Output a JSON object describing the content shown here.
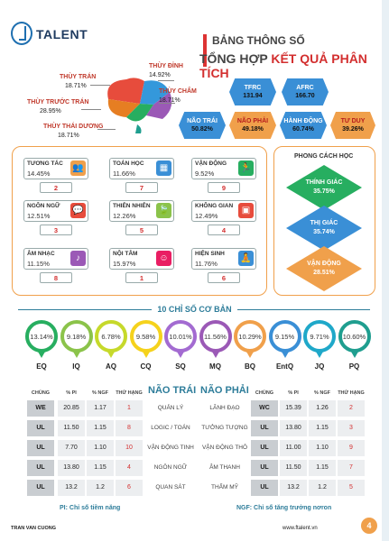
{
  "header": {
    "logo_text": "TALENT",
    "title_line1": "BẢNG THÔNG SỐ",
    "title_line2_a": "TỔNG HỢP ",
    "title_line2_b": "KẾT QUẢ PHÂN TÍCH"
  },
  "brain": [
    {
      "label": "THÙY TRÁN",
      "value": "18.71%",
      "color": "#e74c3c"
    },
    {
      "label": "THÙY ĐỈNH",
      "value": "14.92%",
      "color": "#3498db"
    },
    {
      "label": "THÙY TRƯỚC TRÁN",
      "value": "28.95%",
      "color": "#e67e22"
    },
    {
      "label": "THÙY CHẨM",
      "value": "18.71%",
      "color": "#9b59b6"
    },
    {
      "label": "THÙY THÁI DƯƠNG",
      "value": "18.71%",
      "color": "#27ae60"
    }
  ],
  "hex_top": [
    {
      "label": "TFRC",
      "value": "131.94"
    },
    {
      "label": "AFRC",
      "value": "166.70"
    }
  ],
  "hex_bottom": [
    {
      "label": "NÃO TRÁI",
      "value": "50.82%",
      "color": "#3a8fd6"
    },
    {
      "label": "NÃO PHẢI",
      "value": "49.18%",
      "color": "#f0a04b"
    },
    {
      "label": "HÀNH ĐỘNG",
      "value": "60.74%",
      "color": "#3a8fd6"
    },
    {
      "label": "TƯ DUY",
      "value": "39.26%",
      "color": "#f0a04b"
    }
  ],
  "intelligences": [
    {
      "name": "TƯƠNG TÁC",
      "value": "14.45%",
      "rank": "2",
      "icon": "people-icon",
      "glyph": "👥",
      "color": "#f0a04b"
    },
    {
      "name": "TOÁN HỌC",
      "value": "11.66%",
      "rank": "7",
      "icon": "calculator-icon",
      "glyph": "▦",
      "color": "#3a8fd6"
    },
    {
      "name": "VẬN ĐỘNG",
      "value": "9.52%",
      "rank": "9",
      "icon": "runner-icon",
      "glyph": "🏃",
      "color": "#27ae60"
    },
    {
      "name": "NGÔN NGỮ",
      "value": "12.51%",
      "rank": "3",
      "icon": "speech-icon",
      "glyph": "💬",
      "color": "#e74c3c"
    },
    {
      "name": "THIÊN NHIÊN",
      "value": "12.26%",
      "rank": "5",
      "icon": "leaf-icon",
      "glyph": "🍃",
      "color": "#8bc34a"
    },
    {
      "name": "KHÔNG GIAN",
      "value": "12.49%",
      "rank": "4",
      "icon": "blocks-icon",
      "glyph": "▣",
      "color": "#e74c3c"
    },
    {
      "name": "ÂM NHẠC",
      "value": "11.15%",
      "rank": "8",
      "icon": "music-icon",
      "glyph": "♪",
      "color": "#9b59b6"
    },
    {
      "name": "NỘI TÂM",
      "value": "15.97%",
      "rank": "1",
      "icon": "head-icon",
      "glyph": "☺",
      "color": "#e91e63"
    },
    {
      "name": "HIỆN SINH",
      "value": "11.76%",
      "rank": "6",
      "icon": "meditation-icon",
      "glyph": "🧘",
      "color": "#3a8fd6"
    }
  ],
  "learning_style": {
    "title": "PHONG CÁCH HỌC",
    "items": [
      {
        "label": "THÍNH GIÁC",
        "value": "35.75%",
        "color": "#27ae60"
      },
      {
        "label": "THỊ GIÁC",
        "value": "35.74%",
        "color": "#3a8fd6"
      },
      {
        "label": "VẬN ĐỘNG",
        "value": "28.51%",
        "color": "#f0a04b"
      }
    ]
  },
  "indexes": {
    "title": "10 CHỈ SỐ CƠ BẢN",
    "items": [
      {
        "code": "EQ",
        "value": "13.14%",
        "color": "#27ae60"
      },
      {
        "code": "IQ",
        "value": "9.18%",
        "color": "#8bc34a"
      },
      {
        "code": "AQ",
        "value": "6.78%",
        "color": "#c6d92b"
      },
      {
        "code": "CQ",
        "value": "9.58%",
        "color": "#f5d21c"
      },
      {
        "code": "SQ",
        "value": "10.01%",
        "color": "#a36bd1"
      },
      {
        "code": "MQ",
        "value": "11.56%",
        "color": "#9b59b6"
      },
      {
        "code": "BQ",
        "value": "10.29%",
        "color": "#f0a04b"
      },
      {
        "code": "EntQ",
        "value": "9.15%",
        "color": "#3a8fd6"
      },
      {
        "code": "JQ",
        "value": "9.71%",
        "color": "#1fa8c9"
      },
      {
        "code": "PQ",
        "value": "10.60%",
        "color": "#1f9e8f"
      }
    ]
  },
  "table": {
    "head_left": [
      "CHỦNG",
      "% PI",
      "% NGF",
      "THỨ HẠNG"
    ],
    "head_right": [
      "CHỦNG",
      "% PI",
      "% NGF",
      "THỨ HẠNG"
    ],
    "brain_left": "NÃO TRÁI",
    "brain_right": "NÃO PHẢI",
    "rows": [
      {
        "l_type": "WE",
        "l_pi": "20.85",
        "l_ngf": "1.17",
        "l_rank": "1",
        "l_func": "QUẢN LÝ",
        "r_func": "LÃNH ĐẠO",
        "r_type": "WC",
        "r_pi": "15.39",
        "r_ngf": "1.26",
        "r_rank": "2"
      },
      {
        "l_type": "UL",
        "l_pi": "11.50",
        "l_ngf": "1.15",
        "l_rank": "8",
        "l_func": "LOGIC / TOÁN",
        "r_func": "TƯỞNG TƯỢNG",
        "r_type": "UL",
        "r_pi": "13.80",
        "r_ngf": "1.15",
        "r_rank": "3"
      },
      {
        "l_type": "UL",
        "l_pi": "7.70",
        "l_ngf": "1.10",
        "l_rank": "10",
        "l_func": "VẬN ĐỘNG TINH",
        "r_func": "VẬN ĐỘNG THÔ",
        "r_type": "UL",
        "r_pi": "11.00",
        "r_ngf": "1.10",
        "r_rank": "9"
      },
      {
        "l_type": "UL",
        "l_pi": "13.80",
        "l_ngf": "1.15",
        "l_rank": "4",
        "l_func": "NGÔN NGỮ",
        "r_func": "ÂM THANH",
        "r_type": "UL",
        "r_pi": "11.50",
        "r_ngf": "1.15",
        "r_rank": "7"
      },
      {
        "l_type": "UL",
        "l_pi": "13.2",
        "l_ngf": "1.2",
        "l_rank": "6",
        "l_func": "QUAN SÁT",
        "r_func": "THẨM MỸ",
        "r_type": "UL",
        "r_pi": "13.2",
        "r_ngf": "1.2",
        "r_rank": "5"
      }
    ]
  },
  "notes": {
    "pi": "PI: Chỉ số tiềm năng",
    "ngf": "NGF: Chỉ số tăng trưởng nơron"
  },
  "footer": {
    "author": "TRAN VAN CUONG",
    "website": "www.ftalent.vn",
    "page": "4"
  }
}
